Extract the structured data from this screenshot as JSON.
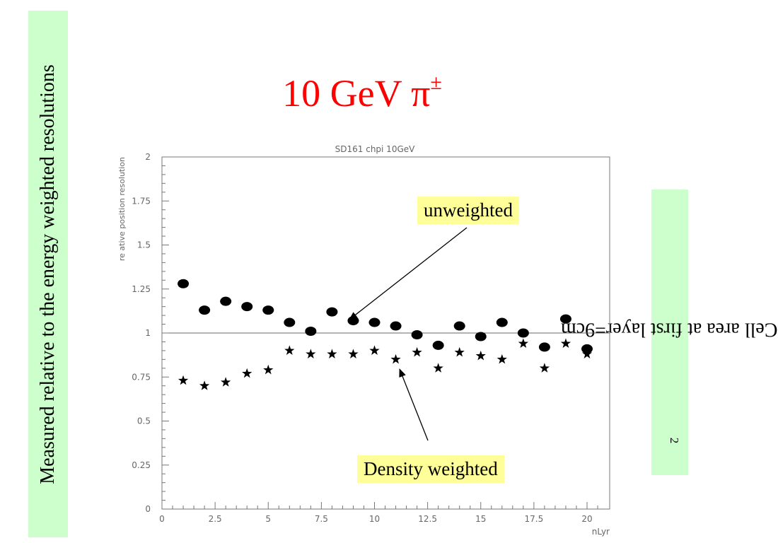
{
  "slide": {
    "title": "10 GeV π",
    "title_sup": "±",
    "left_box_text": "Measured relative to the energy weighted resolutions",
    "right_box_text": "Cell area at first layer=9cm",
    "right_box_sup": "2",
    "title_color": "#ff0000",
    "side_box_color": "#ccffcc",
    "callout_color": "#ffff99"
  },
  "callouts": {
    "unweighted": "unweighted",
    "density": "Density weighted"
  },
  "chart_data": {
    "type": "scatter",
    "title": "SD161 chpi 10GeV",
    "xlabel": "nLyr",
    "ylabel": "re ative position resolution",
    "xlim": [
      0,
      21
    ],
    "ylim": [
      0,
      2
    ],
    "x_ticks": [
      "0",
      "2.5",
      "5",
      "7.5",
      "10",
      "12.5",
      "15",
      "17.5",
      "20"
    ],
    "y_ticks": [
      "0",
      "0.25",
      "0.5",
      "0.75",
      "1",
      "1.25",
      "1.5",
      "1.75",
      "2"
    ],
    "reference_line": 1,
    "grid": false,
    "series": [
      {
        "name": "unweighted",
        "marker": "circle",
        "x": [
          1,
          2,
          3,
          4,
          5,
          6,
          7,
          8,
          9,
          10,
          11,
          12,
          13,
          14,
          15,
          16,
          17,
          18,
          19,
          20
        ],
        "values": [
          1.28,
          1.13,
          1.18,
          1.15,
          1.13,
          1.06,
          1.01,
          1.12,
          1.07,
          1.06,
          1.04,
          0.99,
          0.93,
          1.04,
          0.98,
          1.06,
          1.0,
          0.92,
          1.08,
          0.91
        ]
      },
      {
        "name": "Density weighted",
        "marker": "star",
        "x": [
          1,
          2,
          3,
          4,
          5,
          6,
          7,
          8,
          9,
          10,
          11,
          12,
          13,
          14,
          15,
          16,
          17,
          18,
          19,
          20
        ],
        "values": [
          0.73,
          0.7,
          0.72,
          0.77,
          0.79,
          0.9,
          0.88,
          0.88,
          0.88,
          0.9,
          0.85,
          0.89,
          0.8,
          0.89,
          0.87,
          0.85,
          0.94,
          0.8,
          0.94,
          0.88
        ]
      }
    ]
  }
}
